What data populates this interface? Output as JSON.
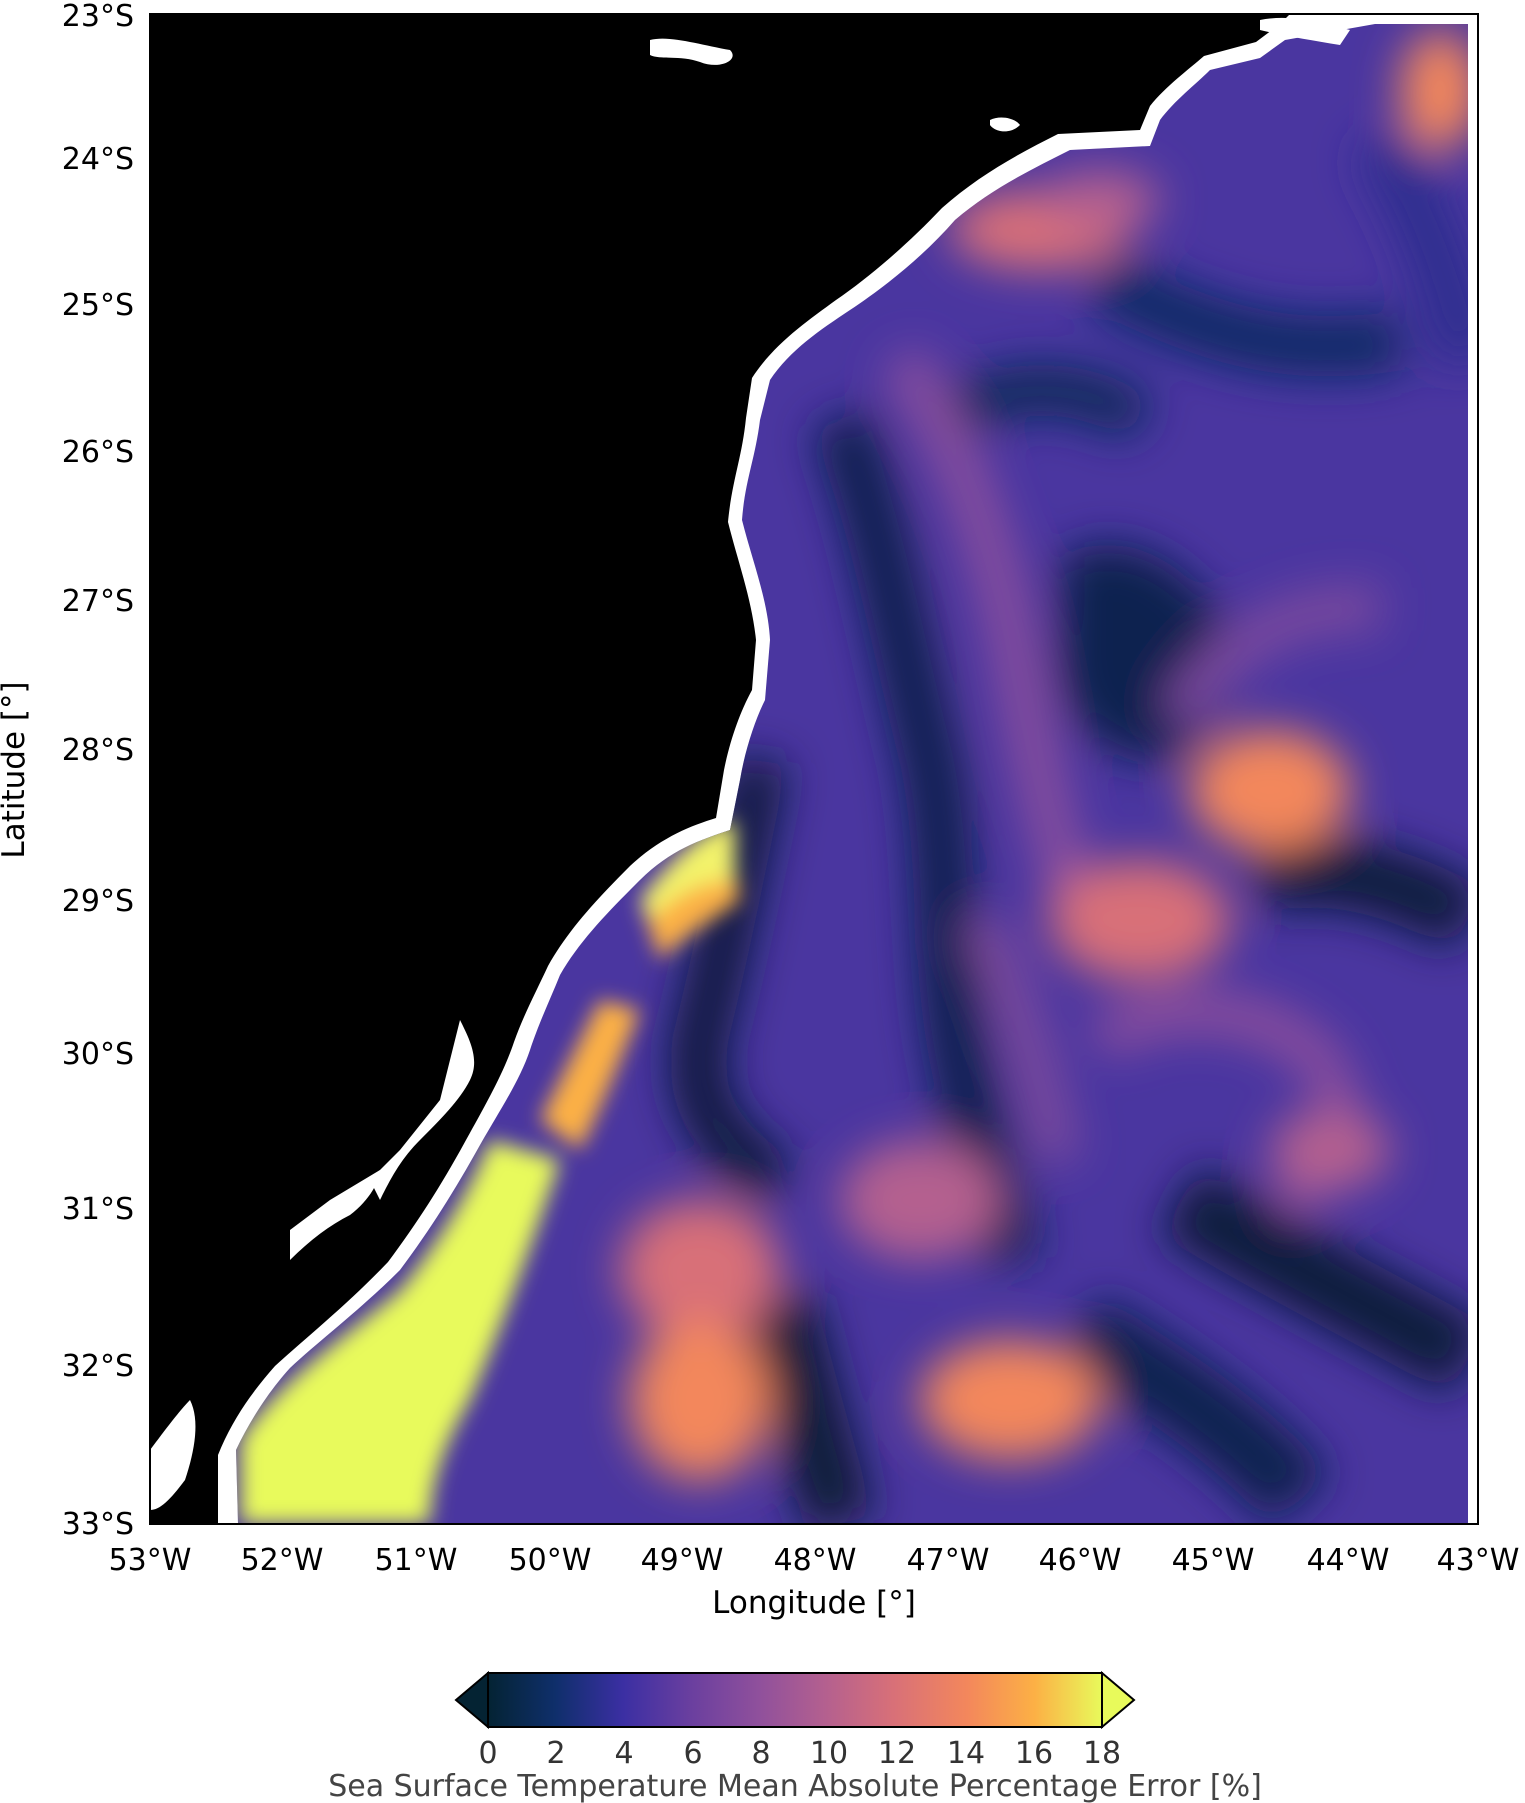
{
  "map": {
    "xlabel": "Longitude [°]",
    "ylabel": "Latitude [°]",
    "x_ticks": [
      "53°W",
      "52°W",
      "51°W",
      "50°W",
      "49°W",
      "48°W",
      "47°W",
      "46°W",
      "45°W",
      "44°W",
      "43°W"
    ],
    "y_ticks": [
      "23°S",
      "24°S",
      "25°S",
      "26°S",
      "27°S",
      "28°S",
      "29°S",
      "30°S",
      "31°S",
      "32°S",
      "33°S"
    ],
    "lon_range": [
      -53,
      -43
    ],
    "lat_range": [
      -33,
      -23
    ],
    "land_color": "#000000",
    "coast_buffer_color": "#ffffff",
    "colormap": "thermal"
  },
  "colorbar": {
    "label": "Sea Surface Temperature Mean Absolute Percentage Error [%]",
    "ticks": [
      "0",
      "2",
      "4",
      "6",
      "8",
      "10",
      "12",
      "14",
      "16",
      "18"
    ],
    "range": [
      0,
      18
    ],
    "extend": "both",
    "colors": [
      "#042333",
      "#0f2f6b",
      "#3b2fa3",
      "#6a3f9f",
      "#8f509c",
      "#b4608f",
      "#d87078",
      "#f3875c",
      "#fcb045",
      "#e8fa5b"
    ]
  }
}
